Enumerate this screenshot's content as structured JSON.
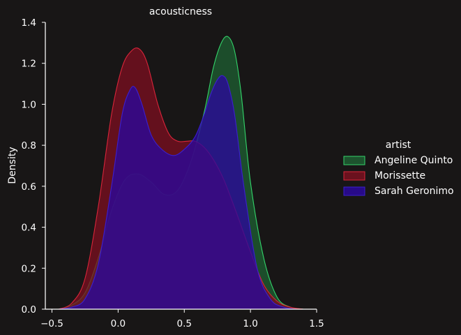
{
  "chart_data": {
    "type": "area",
    "title": "acousticness",
    "xlabel": "",
    "ylabel": "Density",
    "xlim": [
      -0.55,
      1.5
    ],
    "ylim": [
      0,
      1.4
    ],
    "xticks": [
      -0.5,
      0.0,
      0.5,
      1.0,
      1.5
    ],
    "xtick_labels": [
      "−0.5",
      "0.0",
      "0.5",
      "1.0",
      "1.5"
    ],
    "yticks": [
      0.0,
      0.2,
      0.4,
      0.6,
      0.8,
      1.0,
      1.2,
      1.4
    ],
    "ytick_labels": [
      "0.0",
      "0.2",
      "0.4",
      "0.6",
      "0.8",
      "1.0",
      "1.2",
      "1.4"
    ],
    "legend": {
      "title": "artist",
      "placement": "right"
    },
    "background": "#181616",
    "series": [
      {
        "name": "Angeline Quinto",
        "fill": "#1e5e32",
        "stroke": "#33d46a",
        "x": [
          -0.45,
          -0.35,
          -0.25,
          -0.15,
          -0.05,
          0.05,
          0.15,
          0.25,
          0.35,
          0.45,
          0.55,
          0.65,
          0.72,
          0.78,
          0.83,
          0.88,
          0.93,
          1.0,
          1.1,
          1.2,
          1.3,
          1.4
        ],
        "y": [
          0.0,
          0.02,
          0.08,
          0.25,
          0.48,
          0.63,
          0.66,
          0.62,
          0.56,
          0.58,
          0.72,
          0.96,
          1.18,
          1.3,
          1.33,
          1.26,
          1.05,
          0.62,
          0.25,
          0.06,
          0.01,
          0.0
        ]
      },
      {
        "name": "Morissette",
        "fill": "#7a1020",
        "stroke": "#d9253a",
        "x": [
          -0.45,
          -0.35,
          -0.25,
          -0.15,
          -0.05,
          0.03,
          0.1,
          0.16,
          0.22,
          0.3,
          0.38,
          0.45,
          0.52,
          0.58,
          0.65,
          0.72,
          0.8,
          0.9,
          1.0,
          1.1,
          1.2,
          1.3,
          1.4
        ],
        "y": [
          0.0,
          0.03,
          0.15,
          0.5,
          0.95,
          1.18,
          1.26,
          1.27,
          1.2,
          1.0,
          0.86,
          0.82,
          0.82,
          0.82,
          0.79,
          0.73,
          0.63,
          0.46,
          0.28,
          0.12,
          0.04,
          0.01,
          0.0
        ]
      },
      {
        "name": "Sarah Geronimo",
        "fill": "#2a089c",
        "stroke": "#3b1fd0",
        "x": [
          -0.45,
          -0.35,
          -0.25,
          -0.15,
          -0.05,
          0.03,
          0.09,
          0.13,
          0.18,
          0.25,
          0.33,
          0.42,
          0.5,
          0.58,
          0.65,
          0.7,
          0.75,
          0.79,
          0.83,
          0.88,
          0.95,
          1.05,
          1.15,
          1.25,
          1.35,
          1.45
        ],
        "y": [
          0.0,
          0.01,
          0.05,
          0.22,
          0.6,
          0.95,
          1.07,
          1.08,
          1.0,
          0.85,
          0.78,
          0.75,
          0.78,
          0.84,
          0.95,
          1.05,
          1.12,
          1.14,
          1.1,
          0.95,
          0.6,
          0.2,
          0.05,
          0.01,
          0.0,
          0.0
        ]
      }
    ]
  }
}
